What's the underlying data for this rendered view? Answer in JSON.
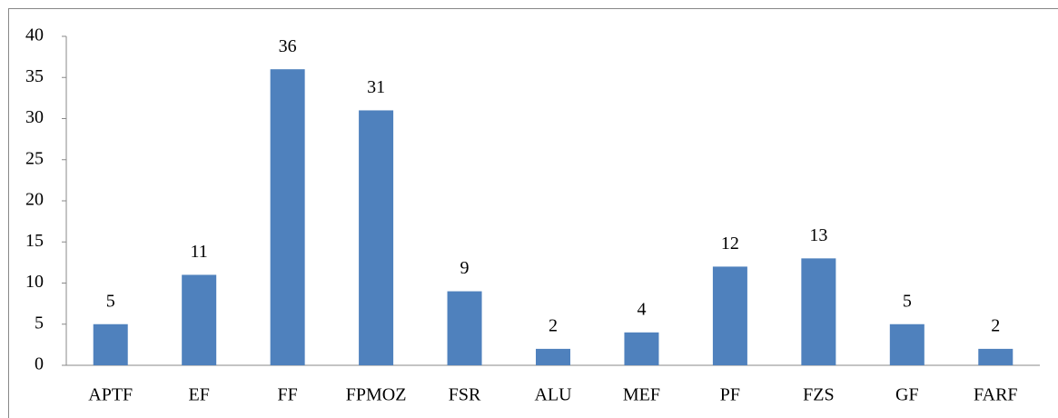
{
  "chart_data": {
    "type": "bar",
    "categories": [
      "APTF",
      "EF",
      "FF",
      "FPMOZ",
      "FSR",
      "ALU",
      "MEF",
      "PF",
      "FZS",
      "GF",
      "FARF"
    ],
    "values": [
      5,
      11,
      36,
      31,
      9,
      2,
      4,
      12,
      13,
      5,
      2
    ],
    "color": "#4f81bd",
    "ylim": [
      0,
      40
    ],
    "yticks": [
      0,
      5,
      10,
      15,
      20,
      25,
      30,
      35,
      40
    ],
    "grid": false
  }
}
